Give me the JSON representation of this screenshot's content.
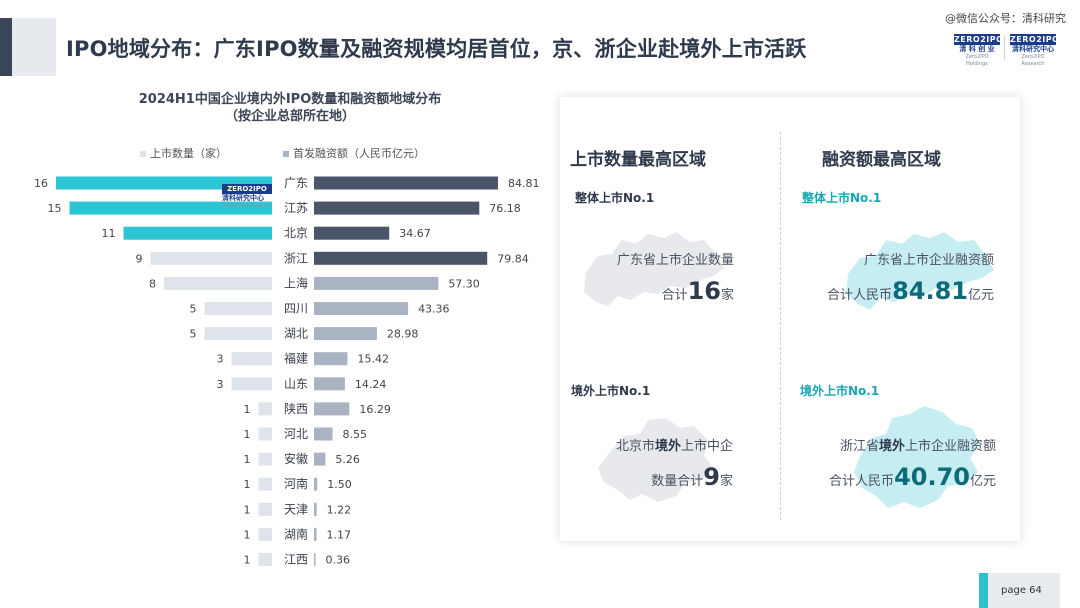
{
  "header": {
    "title": "IPO地域分布：广东IPO数量及融资规模均居首位，京、浙企业赴境外上市活跃",
    "watermark": "@微信公众号：清科研究",
    "logo1_brand": "ZERO2IPO",
    "logo1_cn": "清 科 创 业",
    "logo1_en": "Zero2IPO Holdings",
    "logo2_brand": "ZERO2IPO",
    "logo2_cn": "清科研究中心",
    "logo2_en": "Zero2IPO Research"
  },
  "chart_watermark": {
    "brand": "ZERO2IPO",
    "cn": "清科研究中心",
    "en": "Zero2IPO Research"
  },
  "chart_data": {
    "type": "bar",
    "title_line1": "2024H1中国企业境内外IPO数量和融资额地域分布",
    "title_line2": "（按企业总部所在地）",
    "series": [
      {
        "name": "上市数量（家）",
        "values": [
          16,
          15,
          11,
          9,
          8,
          5,
          5,
          3,
          3,
          1,
          1,
          1,
          1,
          1,
          1,
          1
        ]
      },
      {
        "name": "首发融资额（人民币亿元）",
        "values": [
          84.81,
          76.18,
          34.67,
          79.84,
          57.3,
          43.36,
          28.98,
          15.42,
          14.24,
          16.29,
          8.55,
          5.26,
          1.5,
          1.22,
          1.17,
          0.36
        ]
      }
    ],
    "categories": [
      "广东",
      "江苏",
      "北京",
      "浙江",
      "上海",
      "四川",
      "湖北",
      "福建",
      "山东",
      "陕西",
      "河北",
      "安徽",
      "河南",
      "天津",
      "湖南",
      "江西"
    ],
    "count_labels": [
      "16",
      "15",
      "11",
      "9",
      "8",
      "5",
      "5",
      "3",
      "3",
      "1",
      "1",
      "1",
      "1",
      "1",
      "1",
      "1"
    ],
    "amount_labels": [
      "84.81",
      "76.18",
      "34.67",
      "79.84",
      "57.30",
      "43.36",
      "28.98",
      "15.42",
      "14.24",
      "16.29",
      "8.55",
      "5.26",
      "1.50",
      "1.22",
      "1.17",
      "0.36"
    ],
    "count_max": 16,
    "amount_max": 84.81,
    "count_highlight_top": 3,
    "amount_highlight_top": 4,
    "colors": {
      "count_highlight": "#2bc5d3",
      "count_normal": "#dfe3ea",
      "amount_highlight": "#4a5568",
      "amount_normal": "#aab3c2"
    }
  },
  "legend": {
    "count": "上市数量（家）",
    "amount": "首发融资额（人民币亿元）",
    "count_color": "#dfe3ea",
    "amount_color": "#aab3c2"
  },
  "panel": {
    "left_heading": "上市数量最高区域",
    "right_heading": "融资额最高区域",
    "q1": {
      "label": "整体上市No.1",
      "line1": "广东省上市企业数量",
      "line2_pre": "合计",
      "num": "16",
      "unit": "家"
    },
    "q2": {
      "label": "整体上市No.1",
      "line1": "广东省上市企业融资额",
      "line2_pre": "合计人民币",
      "num": "84.81",
      "unit": "亿元"
    },
    "q3": {
      "label": "境外上市No.1",
      "line1_a": "北京市",
      "line1_b": "境外",
      "line1_c": "上市中企",
      "line2_pre": "数量合计",
      "num": "9",
      "unit": "家"
    },
    "q4": {
      "label": "境外上市No.1",
      "line1_a": "浙江省",
      "line1_b": "境外",
      "line1_c": "上市企业融资额",
      "line2_pre": "合计人民币",
      "num": "40.70",
      "unit": "亿元"
    },
    "map_icons": [
      "guangdong-map-icon",
      "guangdong-map-icon",
      "beijing-map-icon",
      "zhejiang-map-icon"
    ],
    "map_colors": {
      "grey": "#e7e9ed",
      "teal": "#c6eef2"
    }
  },
  "footer": {
    "page_label": "page 64"
  }
}
